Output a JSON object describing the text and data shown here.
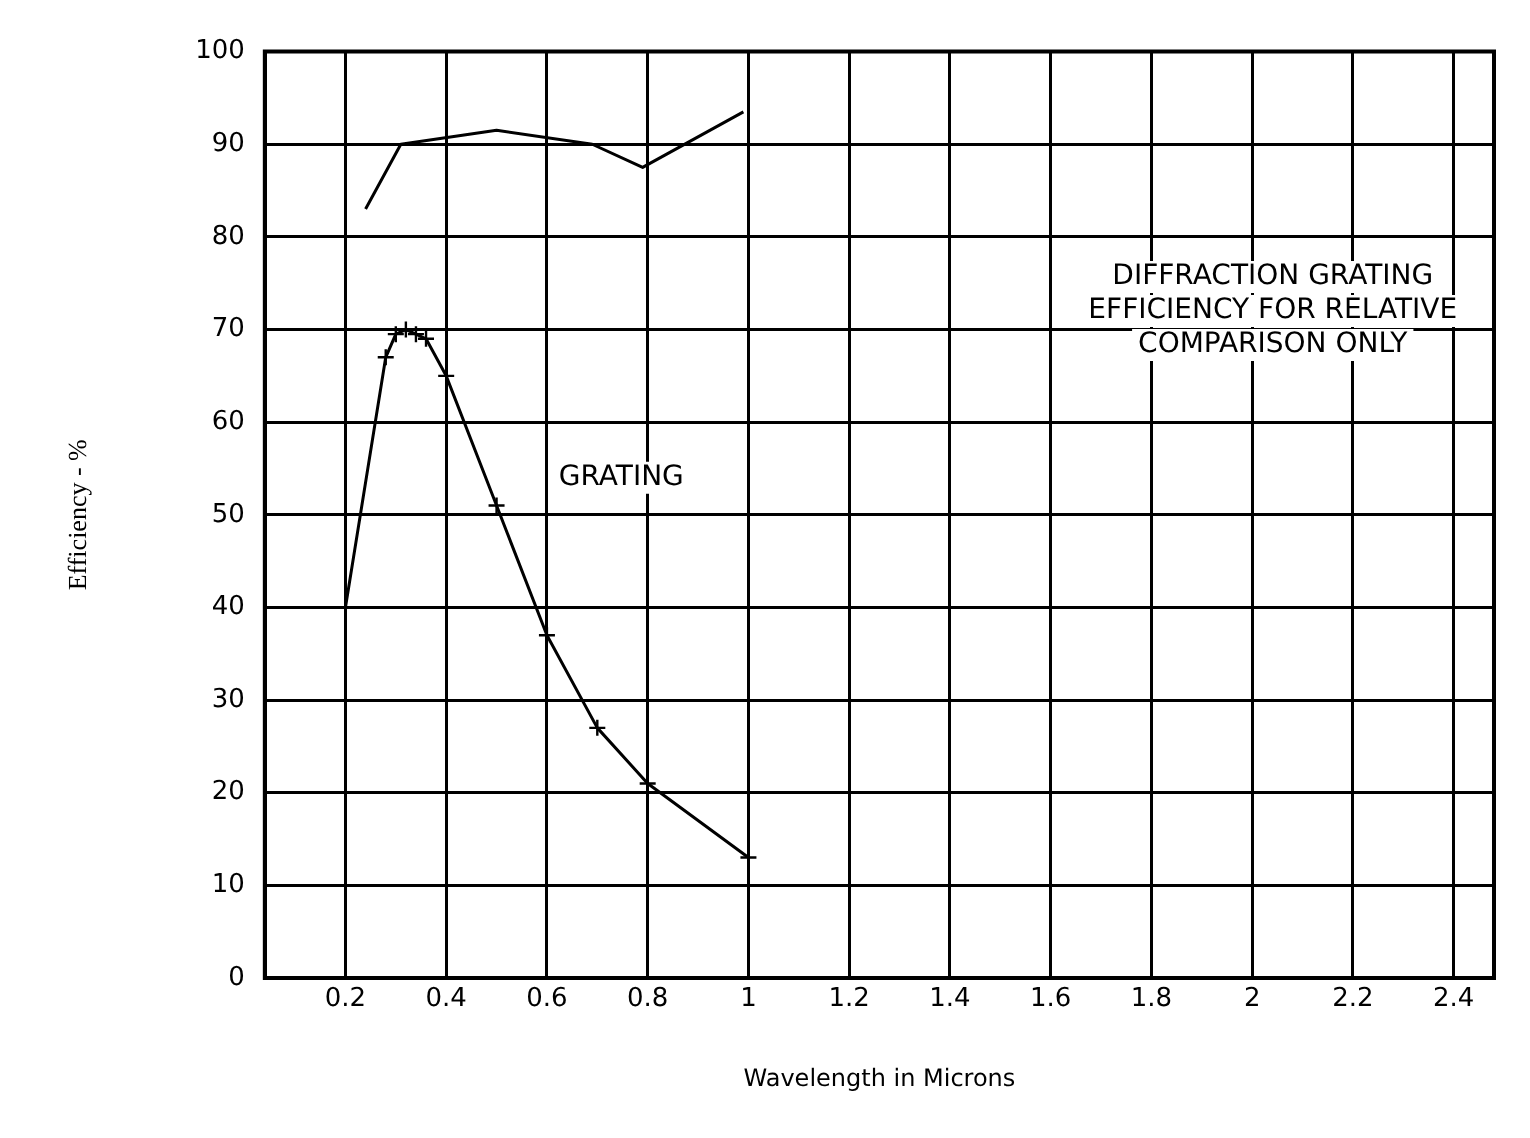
{
  "chart_data": {
    "type": "line",
    "xlabel": "Wavelength in Microns",
    "ylabel": "Efficiency - %",
    "xlim": [
      0.04,
      2.48
    ],
    "xticks": [
      0.2,
      0.4,
      0.6,
      0.8,
      1,
      1.2,
      1.4,
      1.6,
      1.8,
      2,
      2.2,
      2.4
    ],
    "ylim": [
      0,
      100
    ],
    "yticks": [
      0,
      10,
      20,
      30,
      40,
      50,
      60,
      70,
      80,
      90,
      100
    ],
    "grid": true,
    "line_style": "solid",
    "series": [
      {
        "color": "#000000",
        "marker": "none",
        "x": [
          0.24,
          0.31,
          0.5,
          0.69,
          0.79,
          0.99
        ],
        "values": [
          83,
          90,
          91.5,
          90,
          87.5,
          93.5
        ]
      },
      {
        "color": "#000000",
        "marker": "cross",
        "x": [
          0.2,
          0.28,
          0.3,
          0.32,
          0.34,
          0.36,
          0.4,
          0.5,
          0.6,
          0.7,
          0.8,
          1
        ],
        "values": [
          40,
          67,
          69.5,
          70,
          69.5,
          69,
          65,
          51,
          37,
          27,
          21,
          13
        ]
      }
    ],
    "annotations": [
      "GRATING",
      "DIFFRACTION GRATING\nEFFICIENCY FOR RELATIVE\nCOMPARISON ONLY"
    ]
  }
}
